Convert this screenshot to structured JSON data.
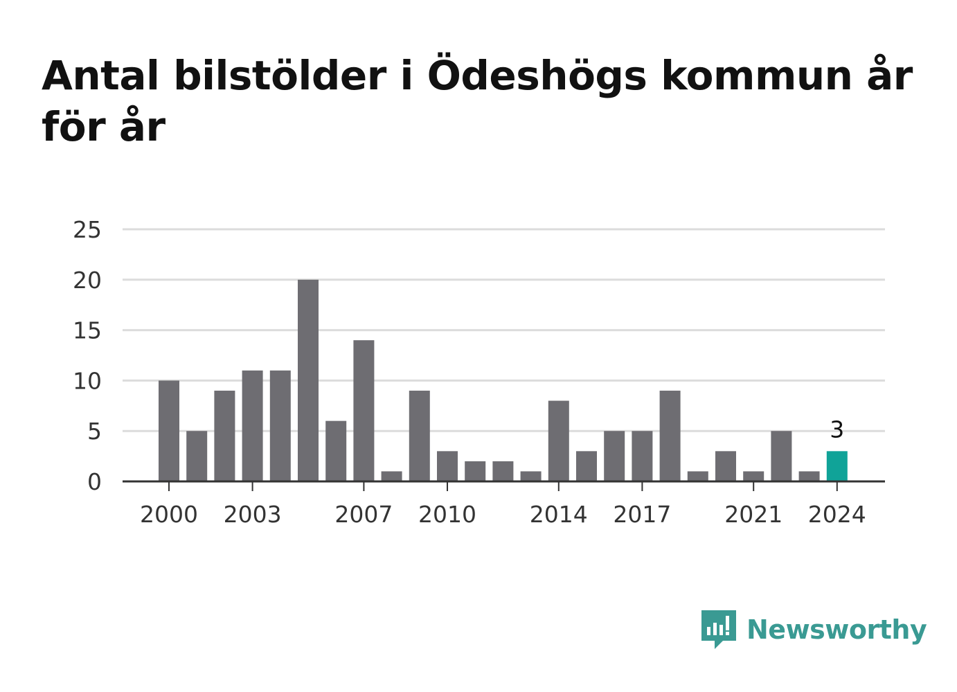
{
  "chart_data": {
    "type": "bar",
    "title": "Antal bilstölder i Ödeshögs kommun år för år",
    "categories": [
      2000,
      2001,
      2002,
      2003,
      2004,
      2005,
      2006,
      2007,
      2008,
      2009,
      2010,
      2011,
      2012,
      2013,
      2014,
      2015,
      2016,
      2017,
      2018,
      2019,
      2020,
      2021,
      2022,
      2023,
      2024
    ],
    "values": [
      10,
      5,
      9,
      11,
      11,
      20,
      6,
      14,
      1,
      9,
      3,
      2,
      2,
      1,
      8,
      3,
      5,
      5,
      9,
      1,
      3,
      1,
      5,
      1,
      3
    ],
    "x_tick_labels": [
      "2000",
      "2003",
      "2007",
      "2010",
      "2014",
      "2017",
      "2021",
      "2024"
    ],
    "y_ticks": [
      0,
      5,
      10,
      15,
      20,
      25
    ],
    "ylim": [
      0,
      25
    ],
    "grid": true,
    "highlight": {
      "category": 2024,
      "label": "3"
    },
    "colors": {
      "bar": "#6e6d72",
      "highlight": "#10a398",
      "grid": "#dcdcdc",
      "axis": "#333333"
    }
  },
  "brand": {
    "name": "Newsworthy",
    "color": "#3a9a93",
    "icon": "newsworthy-logo-icon"
  }
}
